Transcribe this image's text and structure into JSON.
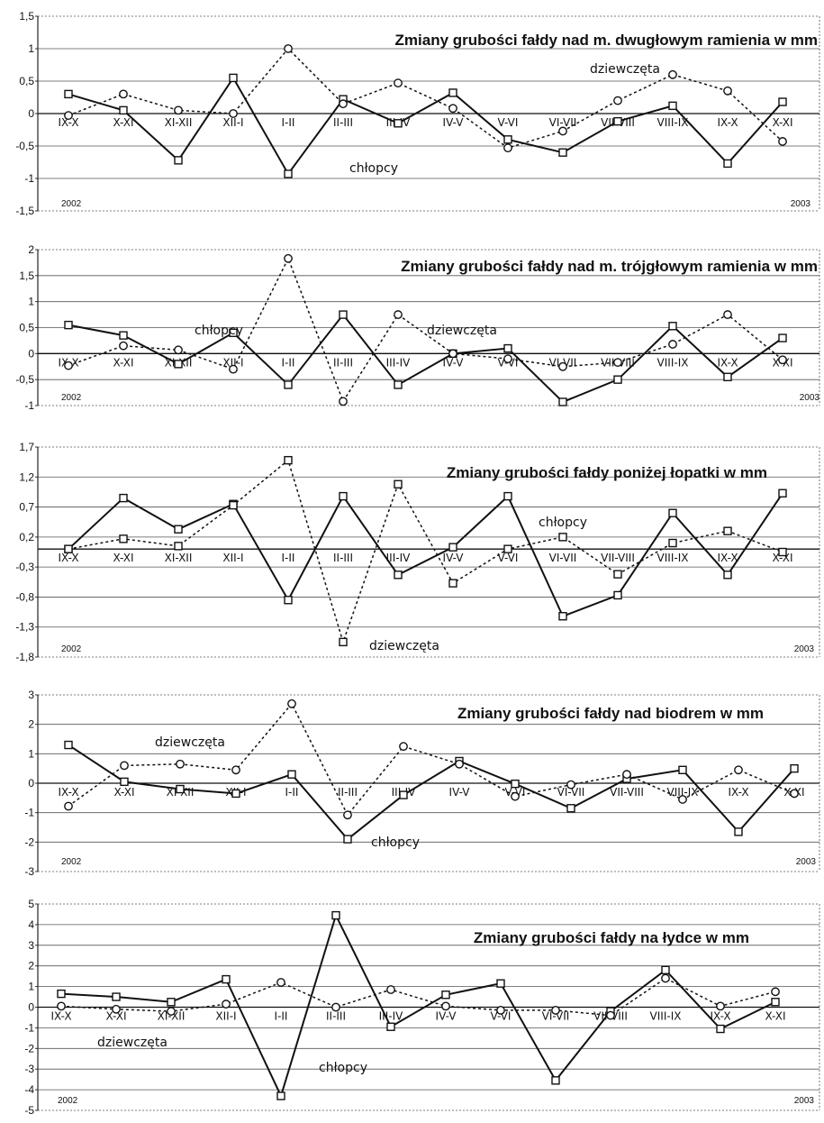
{
  "chart_data": [
    {
      "type": "line",
      "title": "Zmiany grubości fałdy nad m. dwugłowym ramienia w mm",
      "categories": [
        "IX-X",
        "X-XI",
        "XI-XII",
        "XII-I",
        "I-II",
        "II-III",
        "III-IV",
        "IV-V",
        "V-VI",
        "VI-VII",
        "VII-VIII",
        "VIII-IX",
        "IX-X",
        "X-XI"
      ],
      "ylim": [
        -1.5,
        1.5
      ],
      "yticks": [
        "1,5",
        "1",
        "0,5",
        "0",
        "-0,5",
        "-1",
        "-1,5"
      ],
      "years": [
        "2002",
        "2003"
      ],
      "grid": true,
      "series": [
        {
          "name": "chłopcy",
          "values": [
            0.3,
            0.05,
            -0.72,
            0.55,
            -0.93,
            0.22,
            -0.15,
            0.32,
            -0.4,
            -0.6,
            -0.12,
            0.12,
            -0.77,
            0.18
          ]
        },
        {
          "name": "dziewczęta",
          "values": [
            -0.03,
            0.3,
            0.05,
            0.0,
            1.0,
            0.15,
            0.47,
            0.08,
            -0.53,
            -0.27,
            0.2,
            0.6,
            0.35,
            -0.43
          ]
        }
      ]
    },
    {
      "type": "line",
      "title": "Zmiany grubości fałdy nad m. trójgłowym ramienia w mm",
      "categories": [
        "IX-X",
        "X-XI",
        "XI-XII",
        "XII-I",
        "I-II",
        "II-III",
        "III-IV",
        "IV-V",
        "V-VI",
        "VI-VII",
        "VII-VIII",
        "VIII-IX",
        "IX-X",
        "X-XI"
      ],
      "ylim": [
        -1,
        2
      ],
      "yticks": [
        "2",
        "1,5",
        "1",
        "0,5",
        "0",
        "-0,5",
        "-1"
      ],
      "years": [
        "2002",
        "2003"
      ],
      "grid": true,
      "series": [
        {
          "name": "chłopcy",
          "values": [
            0.55,
            0.35,
            -0.2,
            0.4,
            -0.6,
            0.75,
            -0.6,
            0.0,
            0.1,
            -0.93,
            -0.5,
            0.53,
            -0.45,
            0.3
          ]
        },
        {
          "name": "dziewczęta",
          "values": [
            -0.23,
            0.15,
            0.07,
            -0.3,
            1.83,
            -0.92,
            0.75,
            0.0,
            -0.1,
            -0.25,
            -0.17,
            0.18,
            0.75,
            -0.12
          ]
        }
      ]
    },
    {
      "type": "line",
      "title": "Zmiany grubości fałdy poniżej łopatki w mm",
      "categories": [
        "IX-X",
        "X-XI",
        "XI-XII",
        "XII-I",
        "I-II",
        "II-III",
        "III-IV",
        "IV-V",
        "V-VI",
        "VI-VII",
        "VII-VIII",
        "VIII-IX",
        "IX-X",
        "X-XI"
      ],
      "ylim": [
        -1.8,
        1.7
      ],
      "yticks": [
        "1,7",
        "1,2",
        "0,7",
        "0,2",
        "-0,3",
        "-0,8",
        "-1,3",
        "-1,8"
      ],
      "years": [
        "2002",
        "2003"
      ],
      "grid": true,
      "series": [
        {
          "name": "chłopcy",
          "values": [
            0.0,
            0.85,
            0.33,
            0.75,
            -0.85,
            0.88,
            -0.43,
            0.03,
            0.88,
            -1.12,
            -0.77,
            0.6,
            -0.43,
            0.93
          ]
        },
        {
          "name": "dziewczęta",
          "values": [
            0.0,
            0.17,
            0.05,
            0.73,
            1.48,
            -1.55,
            1.08,
            -0.57,
            0.0,
            0.2,
            -0.42,
            0.1,
            0.3,
            -0.05
          ]
        }
      ]
    },
    {
      "type": "line",
      "title": "Zmiany grubości fałdy nad biodrem w mm",
      "categories": [
        "IX-X",
        "X-XI",
        "XI-XII",
        "XII-I",
        "I-II",
        "II-III",
        "III-IV",
        "IV-V",
        "V-VI",
        "VI-VII",
        "VII-VIII",
        "VIII-IX",
        "IX-X",
        "X-XI"
      ],
      "ylim": [
        -3,
        3
      ],
      "yticks": [
        "3",
        "2",
        "1",
        "0",
        "-1",
        "-2",
        "-3"
      ],
      "years": [
        "2002",
        "2003"
      ],
      "grid": true,
      "series": [
        {
          "name": "chłopcy",
          "values": [
            1.3,
            0.05,
            -0.2,
            -0.35,
            0.3,
            -1.9,
            -0.4,
            0.75,
            -0.02,
            -0.85,
            0.15,
            0.45,
            -1.65,
            0.5
          ]
        },
        {
          "name": "dziewczęta",
          "values": [
            -0.78,
            0.6,
            0.65,
            0.45,
            2.7,
            -1.08,
            1.25,
            0.65,
            -0.45,
            -0.05,
            0.3,
            -0.55,
            0.45,
            -0.35
          ]
        }
      ]
    },
    {
      "type": "line",
      "title": "Zmiany grubości fałdy na łydce w mm",
      "categories": [
        "IX-X",
        "X-XI",
        "XI-XII",
        "XII-I",
        "I-II",
        "II-III",
        "III-IV",
        "IV-V",
        "V-VI",
        "VI-VII",
        "VII-VIII",
        "VIII-IX",
        "IX-X",
        "X-XI"
      ],
      "ylim": [
        -5,
        5
      ],
      "yticks": [
        "5",
        "4",
        "3",
        "2",
        "1",
        "0",
        "-1",
        "-2",
        "-3",
        "-4",
        "-5"
      ],
      "years": [
        "2002",
        "2003"
      ],
      "grid": true,
      "series": [
        {
          "name": "chłopcy",
          "values": [
            0.65,
            0.5,
            0.25,
            1.35,
            -4.3,
            4.45,
            -0.95,
            0.6,
            1.15,
            -3.55,
            -0.2,
            1.8,
            -1.05,
            0.25
          ]
        },
        {
          "name": "dziewczęta",
          "values": [
            0.05,
            -0.1,
            -0.2,
            0.15,
            1.2,
            0.0,
            0.85,
            0.05,
            -0.15,
            -0.15,
            -0.4,
            1.4,
            0.05,
            0.75
          ]
        }
      ]
    }
  ]
}
